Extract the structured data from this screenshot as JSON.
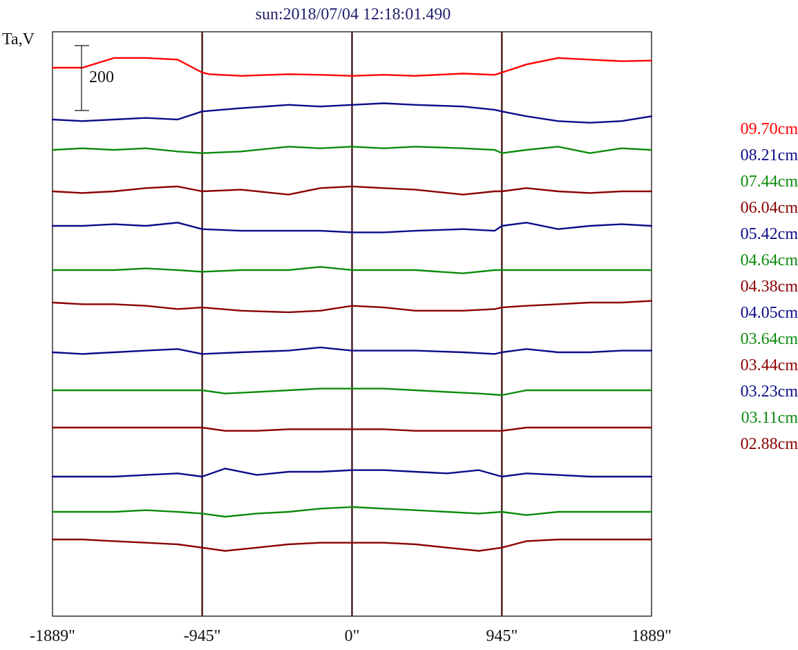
{
  "chart_data": {
    "type": "line",
    "title": "sun:2018/07/04 12:18:01.490",
    "ylabel": "Ta,V",
    "scale_bar_label": "200",
    "x_ticks": [
      {
        "value": -1889,
        "label": "-1889\""
      },
      {
        "value": -945,
        "label": "-945\""
      },
      {
        "value": 0,
        "label": "0\""
      },
      {
        "value": 945,
        "label": "945\""
      },
      {
        "value": 1889,
        "label": "1889\""
      }
    ],
    "xlim": [
      -1889,
      1889
    ],
    "vertical_lines": [
      -945,
      0,
      945
    ],
    "legend": [
      {
        "label": "09.70cm",
        "color": "#ff0000"
      },
      {
        "label": "08.21cm",
        "color": "#0b0b8a"
      },
      {
        "label": "07.44cm",
        "color": "#0b8a0b"
      },
      {
        "label": "06.04cm",
        "color": "#8b0000"
      },
      {
        "label": "05.42cm",
        "color": "#0b0b8a"
      },
      {
        "label": "04.64cm",
        "color": "#0b8a0b"
      },
      {
        "label": "04.38cm",
        "color": "#8b0000"
      },
      {
        "label": "04.05cm",
        "color": "#0b0b8a"
      },
      {
        "label": "03.64cm",
        "color": "#0b8a0b"
      },
      {
        "label": "03.44cm",
        "color": "#8b0000"
      },
      {
        "label": "03.23cm",
        "color": "#0b0b8a"
      },
      {
        "label": "03.11cm",
        "color": "#0b8a0b"
      },
      {
        "label": "02.88cm",
        "color": "#8b0000"
      }
    ],
    "series": [
      {
        "name": "09.70cm",
        "color": "#ff0000",
        "x": [
          -1889,
          -1700,
          -1500,
          -1300,
          -1100,
          -945,
          -900,
          -700,
          -400,
          -200,
          0,
          200,
          400,
          700,
          900,
          945,
          1100,
          1300,
          1500,
          1700,
          1889
        ],
        "y": [
          0,
          0,
          30,
          30,
          25,
          -15,
          -20,
          -25,
          -20,
          -22,
          -25,
          -22,
          -25,
          -18,
          -22,
          -15,
          10,
          30,
          25,
          20,
          22
        ]
      },
      {
        "name": "08.21cm",
        "color": "#0b0b8a",
        "x": [
          -1889,
          -1700,
          -1500,
          -1300,
          -1100,
          -945,
          -700,
          -400,
          -200,
          0,
          200,
          400,
          700,
          900,
          945,
          1100,
          1300,
          1500,
          1700,
          1889
        ],
        "y": [
          0,
          -5,
          0,
          5,
          0,
          25,
          35,
          45,
          40,
          45,
          50,
          45,
          40,
          30,
          25,
          10,
          -5,
          -10,
          -5,
          10
        ]
      },
      {
        "name": "07.44cm",
        "color": "#0b8a0b",
        "x": [
          -1889,
          -1700,
          -1500,
          -1300,
          -1100,
          -945,
          -700,
          -400,
          -200,
          0,
          200,
          400,
          700,
          900,
          945,
          1100,
          1300,
          1500,
          1700,
          1889
        ],
        "y": [
          0,
          5,
          0,
          5,
          -5,
          -10,
          -5,
          10,
          5,
          10,
          5,
          10,
          5,
          0,
          -10,
          0,
          10,
          -10,
          5,
          0
        ]
      },
      {
        "name": "06.04cm",
        "color": "#8b0000",
        "x": [
          -1889,
          -1700,
          -1500,
          -1300,
          -1100,
          -945,
          -700,
          -400,
          -200,
          0,
          200,
          400,
          700,
          900,
          945,
          1100,
          1300,
          1500,
          1700,
          1889
        ],
        "y": [
          0,
          -5,
          0,
          10,
          15,
          0,
          5,
          -10,
          10,
          15,
          10,
          5,
          -10,
          0,
          0,
          10,
          0,
          -5,
          0,
          0
        ]
      },
      {
        "name": "05.42cm",
        "color": "#0b0b8a",
        "x": [
          -1889,
          -1700,
          -1500,
          -1300,
          -1100,
          -945,
          -700,
          -400,
          -200,
          0,
          200,
          400,
          700,
          900,
          945,
          1100,
          1300,
          1500,
          1700,
          1889
        ],
        "y": [
          0,
          0,
          5,
          0,
          10,
          -10,
          -15,
          -15,
          -15,
          -20,
          -20,
          -15,
          -10,
          -15,
          0,
          10,
          -10,
          0,
          5,
          0
        ]
      },
      {
        "name": "04.64cm",
        "color": "#0b8a0b",
        "x": [
          -1889,
          -1700,
          -1500,
          -1300,
          -1100,
          -945,
          -700,
          -400,
          -200,
          0,
          200,
          400,
          700,
          900,
          945,
          1100,
          1300,
          1500,
          1700,
          1889
        ],
        "y": [
          0,
          0,
          0,
          5,
          0,
          -5,
          0,
          0,
          10,
          0,
          0,
          0,
          -10,
          0,
          0,
          0,
          0,
          0,
          0,
          0
        ]
      },
      {
        "name": "04.38cm",
        "color": "#8b0000",
        "x": [
          -1889,
          -1700,
          -1500,
          -1300,
          -1100,
          -945,
          -700,
          -400,
          -200,
          0,
          200,
          400,
          700,
          900,
          945,
          1100,
          1300,
          1500,
          1700,
          1889
        ],
        "y": [
          0,
          -5,
          -5,
          -10,
          -20,
          -15,
          -25,
          -30,
          -25,
          -10,
          -15,
          -25,
          -25,
          -20,
          -15,
          -10,
          -5,
          0,
          0,
          5
        ]
      },
      {
        "name": "04.05cm",
        "color": "#0b0b8a",
        "x": [
          -1889,
          -1700,
          -1500,
          -1300,
          -1100,
          -945,
          -700,
          -400,
          -200,
          0,
          200,
          400,
          700,
          900,
          945,
          1100,
          1300,
          1500,
          1700,
          1889
        ],
        "y": [
          0,
          -5,
          0,
          5,
          10,
          -5,
          0,
          5,
          15,
          5,
          5,
          5,
          0,
          -5,
          0,
          10,
          0,
          0,
          5,
          5
        ]
      },
      {
        "name": "03.64cm",
        "color": "#0b8a0b",
        "x": [
          -1889,
          -1700,
          -1500,
          -1300,
          -1100,
          -945,
          -800,
          -600,
          -400,
          -200,
          0,
          200,
          400,
          600,
          800,
          945,
          1100,
          1300,
          1500,
          1700,
          1889
        ],
        "y": [
          0,
          0,
          0,
          0,
          0,
          0,
          -10,
          -5,
          0,
          5,
          5,
          5,
          0,
          -5,
          -10,
          -15,
          0,
          0,
          0,
          0,
          0
        ]
      },
      {
        "name": "03.44cm",
        "color": "#8b0000",
        "x": [
          -1889,
          -1700,
          -1500,
          -1300,
          -1100,
          -945,
          -800,
          -600,
          -400,
          -200,
          0,
          200,
          400,
          600,
          800,
          945,
          1100,
          1300,
          1500,
          1700,
          1889
        ],
        "y": [
          0,
          0,
          0,
          0,
          0,
          0,
          -10,
          -10,
          -5,
          -5,
          -5,
          -5,
          -10,
          -10,
          -10,
          -10,
          0,
          0,
          0,
          0,
          0
        ]
      },
      {
        "name": "03.23cm",
        "color": "#0b0b8a",
        "x": [
          -1889,
          -1700,
          -1500,
          -1300,
          -1100,
          -945,
          -800,
          -600,
          -400,
          -200,
          0,
          200,
          400,
          600,
          800,
          945,
          1100,
          1300,
          1500,
          1700,
          1889
        ],
        "y": [
          0,
          0,
          0,
          5,
          10,
          0,
          25,
          5,
          15,
          15,
          20,
          20,
          15,
          10,
          20,
          0,
          10,
          5,
          0,
          0,
          0
        ]
      },
      {
        "name": "03.11cm",
        "color": "#0b8a0b",
        "x": [
          -1889,
          -1700,
          -1500,
          -1300,
          -1100,
          -945,
          -800,
          -600,
          -400,
          -200,
          0,
          200,
          400,
          600,
          800,
          945,
          1100,
          1300,
          1500,
          1700,
          1889
        ],
        "y": [
          0,
          0,
          0,
          5,
          0,
          -5,
          -15,
          -5,
          0,
          10,
          15,
          10,
          5,
          0,
          -5,
          0,
          -10,
          0,
          0,
          0,
          0
        ]
      },
      {
        "name": "02.88cm",
        "color": "#8b0000",
        "x": [
          -1889,
          -1700,
          -1500,
          -1300,
          -1100,
          -945,
          -800,
          -600,
          -400,
          -200,
          0,
          200,
          400,
          600,
          800,
          945,
          1100,
          1300,
          1500,
          1700,
          1889
        ],
        "y": [
          0,
          0,
          -5,
          -10,
          -15,
          -25,
          -35,
          -25,
          -15,
          -10,
          -10,
          -10,
          -15,
          -25,
          -35,
          -25,
          -5,
          0,
          0,
          0,
          0
        ]
      }
    ]
  }
}
